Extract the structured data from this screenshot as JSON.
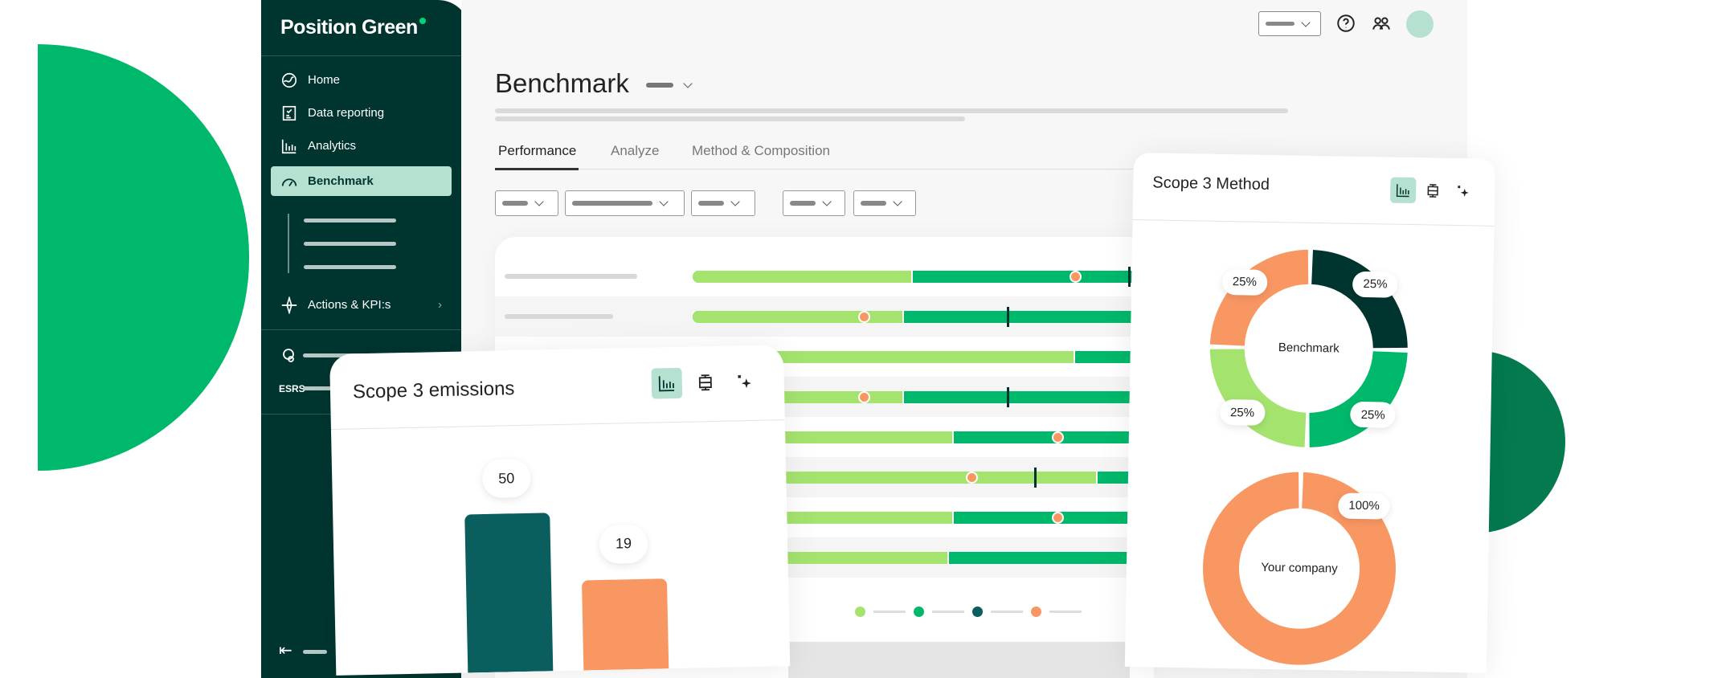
{
  "brand": {
    "name": "Position Green",
    "accent": "#00b86b",
    "dark": "#00352f",
    "highlight": "#b6e1d1",
    "light_green": "#a5e36f",
    "orange": "#f99763",
    "teal": "#0b5e5e"
  },
  "sidebar": {
    "items": [
      {
        "label": "Home",
        "icon": "home-icon"
      },
      {
        "label": "Data reporting",
        "icon": "data-reporting-icon"
      },
      {
        "label": "Analytics",
        "icon": "analytics-icon"
      },
      {
        "label": "Benchmark",
        "icon": "benchmark-icon",
        "active": true
      },
      {
        "label": "Actions & KPI:s",
        "icon": "actions-icon"
      }
    ],
    "esrs_label": "ESRS"
  },
  "header": {
    "title": "Benchmark"
  },
  "tabs": [
    {
      "label": "Performance",
      "active": true
    },
    {
      "label": "Analyze"
    },
    {
      "label": "Method & Composition"
    }
  ],
  "benchmark_rows": [
    {
      "light_pct": 49,
      "dot_pct": 85,
      "marker_pct": 97
    },
    {
      "light_pct": 47,
      "dot_pct": 38,
      "marker_pct": 70
    },
    {
      "light_pct": 85
    },
    {
      "light_pct": 47,
      "dot_pct": 38,
      "marker_pct": 70
    },
    {
      "light_pct": 58,
      "dot_pct": 81
    },
    {
      "light_pct": 90,
      "dot_pct": 62,
      "marker_pct": 76
    },
    {
      "light_pct": 58,
      "dot_pct": 81
    },
    {
      "light_pct": 57
    }
  ],
  "legend_colors": [
    "#a5e36f",
    "#00b86b",
    "#0b5e5e",
    "#f99763"
  ],
  "chart_data": [
    {
      "type": "bar",
      "title": "Scope 3 emissions",
      "categories": [
        "",
        ""
      ],
      "values": [
        50,
        19
      ],
      "colors": [
        "#0b5e5e",
        "#f99763"
      ]
    },
    {
      "type": "pie",
      "title": "Scope 3 Method",
      "charts": [
        {
          "center_label": "Benchmark",
          "slices": [
            {
              "value": 25,
              "label": "25%",
              "color": "#00352f"
            },
            {
              "value": 25,
              "label": "25%",
              "color": "#00b86b"
            },
            {
              "value": 25,
              "label": "25%",
              "color": "#a5e36f"
            },
            {
              "value": 25,
              "label": "25%",
              "color": "#f99763"
            }
          ]
        },
        {
          "center_label": "Your company",
          "slices": [
            {
              "value": 100,
              "label": "100%",
              "color": "#f99763"
            }
          ]
        }
      ]
    }
  ]
}
